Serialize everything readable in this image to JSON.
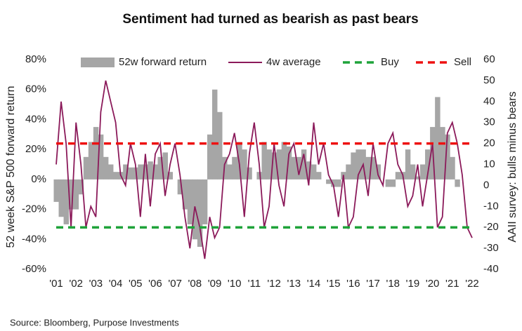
{
  "chart_data": {
    "type": "combo",
    "title": "Sentiment had turned as bearish as past bears",
    "ylabel": "52 week S&P 500 forward return",
    "y2label": "AAII survey: bulls minus bears",
    "source": "Source: Bloomberg, Purpose Investments",
    "xlim": [
      2001,
      2022
    ],
    "xticks": [
      {
        "value": 2001,
        "label": "'01"
      },
      {
        "value": 2002,
        "label": "'02"
      },
      {
        "value": 2003,
        "label": "'03"
      },
      {
        "value": 2004,
        "label": "'04"
      },
      {
        "value": 2005,
        "label": "'05"
      },
      {
        "value": 2006,
        "label": "'06"
      },
      {
        "value": 2007,
        "label": "'07"
      },
      {
        "value": 2008,
        "label": "'08"
      },
      {
        "value": 2009,
        "label": "'09"
      },
      {
        "value": 2010,
        "label": "'10"
      },
      {
        "value": 2011,
        "label": "'11"
      },
      {
        "value": 2012,
        "label": "'12"
      },
      {
        "value": 2013,
        "label": "'13"
      },
      {
        "value": 2014,
        "label": "'14"
      },
      {
        "value": 2015,
        "label": "'15"
      },
      {
        "value": 2016,
        "label": "'16"
      },
      {
        "value": 2017,
        "label": "'17"
      },
      {
        "value": 2018,
        "label": "'18"
      },
      {
        "value": 2019,
        "label": "'19"
      },
      {
        "value": 2020,
        "label": "'20"
      },
      {
        "value": 2021,
        "label": "'21"
      },
      {
        "value": 2022,
        "label": "'22"
      }
    ],
    "ylim": [
      -60,
      80
    ],
    "yticks": [
      {
        "value": 80,
        "label": "80%"
      },
      {
        "value": 60,
        "label": "60%"
      },
      {
        "value": 40,
        "label": "40%"
      },
      {
        "value": 20,
        "label": "20%"
      },
      {
        "value": 0,
        "label": "0%"
      },
      {
        "value": -20,
        "label": "-20%"
      },
      {
        "value": -40,
        "label": "-40%"
      },
      {
        "value": -60,
        "label": "-60%"
      }
    ],
    "y2lim": [
      -40,
      60
    ],
    "y2ticks": [
      60,
      50,
      40,
      30,
      20,
      10,
      0,
      -10,
      -20,
      -30,
      -40
    ],
    "x": [
      2001,
      2001.25,
      2001.5,
      2001.75,
      2002,
      2002.25,
      2002.5,
      2002.75,
      2003,
      2003.25,
      2003.5,
      2003.75,
      2004,
      2004.25,
      2004.5,
      2004.75,
      2005,
      2005.25,
      2005.5,
      2005.75,
      2006,
      2006.25,
      2006.5,
      2006.75,
      2007,
      2007.25,
      2007.5,
      2007.75,
      2008,
      2008.25,
      2008.5,
      2008.75,
      2009,
      2009.25,
      2009.5,
      2009.75,
      2010,
      2010.25,
      2010.5,
      2010.75,
      2011,
      2011.25,
      2011.5,
      2011.75,
      2012,
      2012.25,
      2012.5,
      2012.75,
      2013,
      2013.25,
      2013.5,
      2013.75,
      2014,
      2014.25,
      2014.5,
      2014.75,
      2015,
      2015.25,
      2015.5,
      2015.75,
      2016,
      2016.25,
      2016.5,
      2016.75,
      2017,
      2017.25,
      2017.5,
      2017.75,
      2018,
      2018.25,
      2018.5,
      2018.75,
      2019,
      2019.25,
      2019.5,
      2019.75,
      2020,
      2020.25,
      2020.5,
      2020.75,
      2021,
      2021.25,
      2021.5,
      2021.75,
      2022
    ],
    "series": [
      {
        "name": "52w forward return",
        "kind": "area",
        "color": "#a6a6a6",
        "values": [
          -15,
          -25,
          -30,
          -20,
          -20,
          -10,
          15,
          25,
          35,
          30,
          15,
          10,
          5,
          5,
          10,
          8,
          8,
          10,
          10,
          12,
          10,
          15,
          18,
          5,
          0,
          -10,
          -20,
          -30,
          -40,
          -45,
          -30,
          30,
          60,
          45,
          15,
          10,
          15,
          25,
          20,
          8,
          0,
          5,
          25,
          20,
          18,
          20,
          25,
          22,
          15,
          15,
          20,
          12,
          10,
          5,
          0,
          -3,
          -5,
          -5,
          5,
          10,
          18,
          20,
          20,
          15,
          15,
          10,
          0,
          -5,
          -5,
          5,
          5,
          20,
          10,
          2,
          10,
          20,
          35,
          55,
          35,
          30,
          15,
          -5,
          null,
          null,
          null
        ]
      },
      {
        "name": "4w average",
        "kind": "line",
        "axis": "y2",
        "color": "#8b1a5a",
        "values": [
          10,
          40,
          20,
          -20,
          30,
          10,
          -20,
          -10,
          -15,
          35,
          50,
          40,
          30,
          5,
          0,
          20,
          10,
          -15,
          15,
          -10,
          15,
          20,
          -5,
          10,
          20,
          5,
          -15,
          -30,
          -10,
          -20,
          -35,
          -15,
          -25,
          -20,
          10,
          15,
          25,
          10,
          -15,
          15,
          30,
          10,
          -20,
          -10,
          20,
          0,
          -10,
          15,
          20,
          5,
          15,
          0,
          30,
          10,
          20,
          5,
          0,
          -15,
          5,
          -20,
          -15,
          5,
          10,
          -5,
          20,
          5,
          0,
          20,
          25,
          10,
          5,
          -10,
          -5,
          10,
          -10,
          5,
          20,
          -20,
          -15,
          25,
          30,
          20,
          5,
          -20,
          -25
        ]
      },
      {
        "name": "Buy",
        "kind": "hline",
        "axis": "y2",
        "color": "#1fa33a",
        "value": -20
      },
      {
        "name": "Sell",
        "kind": "hline",
        "axis": "y2",
        "color": "#ee1111",
        "value": 20
      }
    ]
  }
}
